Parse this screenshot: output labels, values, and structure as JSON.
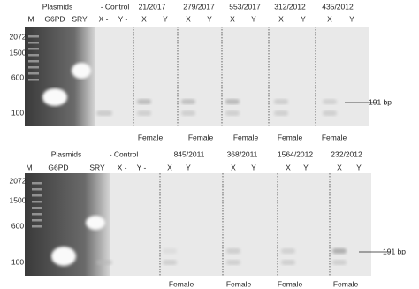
{
  "top_panel": {
    "groups": [
      "Plasmids",
      "- Control",
      "21/2017",
      "279/2017",
      "553/2017",
      "312/2012",
      "435/2012"
    ],
    "lanes": [
      "M",
      "G6PD",
      "SRY",
      "X -",
      "Y -",
      "X",
      "Y",
      "X",
      "Y",
      "X",
      "Y",
      "X",
      "Y",
      "X",
      "Y"
    ],
    "sizes": [
      "2072",
      "1500",
      "600",
      "100"
    ],
    "marker": "191 bp",
    "results": [
      "Female",
      "Female",
      "Female",
      "Female",
      "Female"
    ]
  },
  "bottom_panel": {
    "groups": [
      "Plasmids",
      "- Control",
      "845/2011",
      "368/2011",
      "1564/2012",
      "232/2012"
    ],
    "lanes": [
      "M",
      "G6PD",
      "SRY",
      "X -",
      "Y -",
      "X",
      "Y",
      "X",
      "Y",
      "X",
      "Y",
      "X",
      "Y"
    ],
    "sizes": [
      "2072",
      "1500",
      "600",
      "100"
    ],
    "marker": "191 bp",
    "results": [
      "Female",
      "Female",
      "Female",
      "Female"
    ]
  }
}
